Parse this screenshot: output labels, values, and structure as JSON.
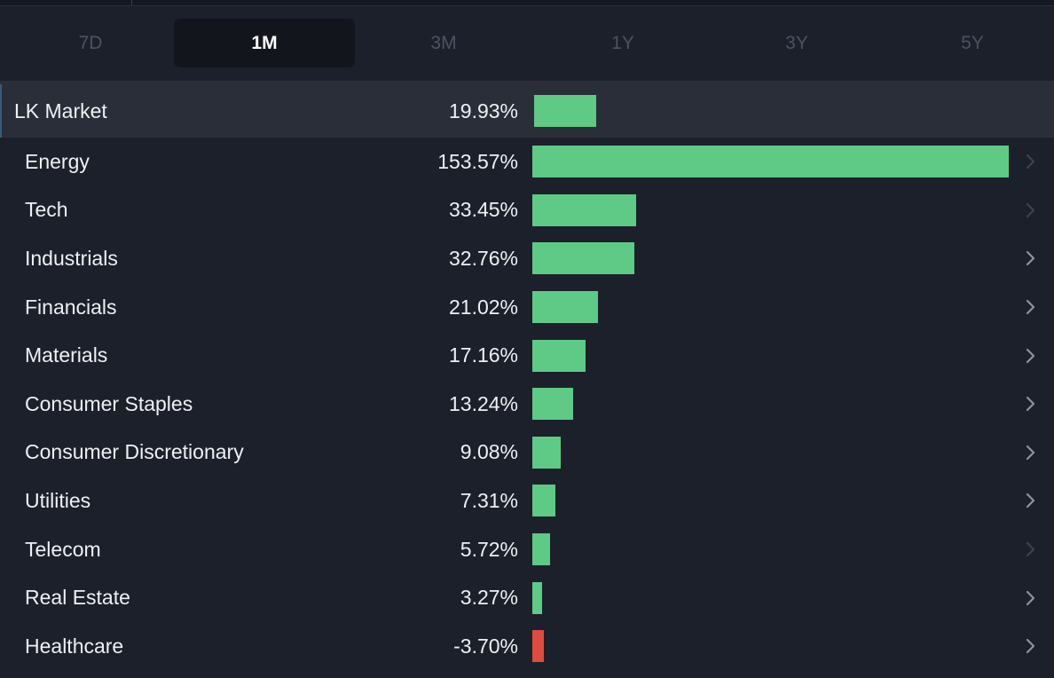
{
  "tabs": [
    {
      "label": "7D",
      "active": false
    },
    {
      "label": "1M",
      "active": true
    },
    {
      "label": "3M",
      "active": false
    },
    {
      "label": "1Y",
      "active": false
    },
    {
      "label": "3Y",
      "active": false
    },
    {
      "label": "5Y",
      "active": false
    }
  ],
  "market": {
    "label": "LK Market",
    "value": 19.93,
    "display": "19.93%"
  },
  "sectors": [
    {
      "label": "Energy",
      "value": 153.57,
      "display": "153.57%",
      "chevron": "dim"
    },
    {
      "label": "Tech",
      "value": 33.45,
      "display": "33.45%",
      "chevron": "dim"
    },
    {
      "label": "Industrials",
      "value": 32.76,
      "display": "32.76%",
      "chevron": "normal"
    },
    {
      "label": "Financials",
      "value": 21.02,
      "display": "21.02%",
      "chevron": "normal"
    },
    {
      "label": "Materials",
      "value": 17.16,
      "display": "17.16%",
      "chevron": "normal"
    },
    {
      "label": "Consumer Staples",
      "value": 13.24,
      "display": "13.24%",
      "chevron": "normal"
    },
    {
      "label": "Consumer Discretionary",
      "value": 9.08,
      "display": "9.08%",
      "chevron": "normal"
    },
    {
      "label": "Utilities",
      "value": 7.31,
      "display": "7.31%",
      "chevron": "normal"
    },
    {
      "label": "Telecom",
      "value": 5.72,
      "display": "5.72%",
      "chevron": "dim"
    },
    {
      "label": "Real Estate",
      "value": 3.27,
      "display": "3.27%",
      "chevron": "normal"
    },
    {
      "label": "Healthcare",
      "value": -3.7,
      "display": "-3.70%",
      "chevron": "normal"
    }
  ],
  "colors": {
    "positive": "#5fc986",
    "negative": "#e04b3f",
    "chevron_normal": "#8c93a1",
    "chevron_dim": "#3c4250"
  },
  "icons": {
    "row_chevron": "chevron-right-icon"
  }
}
